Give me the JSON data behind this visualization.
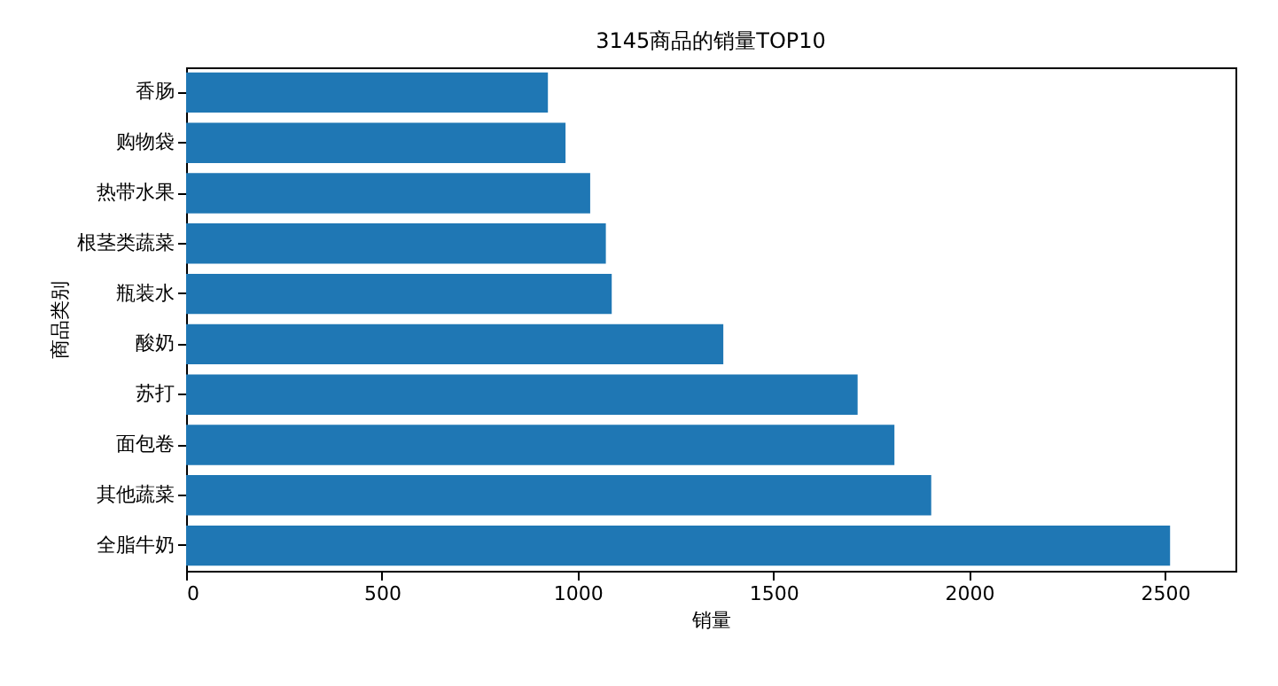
{
  "chart_data": {
    "type": "bar",
    "orientation": "horizontal",
    "title": "3145商品的销量TOP10",
    "xlabel": "销量",
    "ylabel": "商品类别",
    "categories": [
      "香肠",
      "购物袋",
      "热带水果",
      "根茎类蔬菜",
      "瓶装水",
      "酸奶",
      "苏打",
      "面包卷",
      "其他蔬菜",
      "全脂牛奶"
    ],
    "values": [
      924,
      969,
      1032,
      1072,
      1087,
      1372,
      1715,
      1809,
      1903,
      2513
    ],
    "color": "#1f77b4",
    "xlim": [
      0,
      2680
    ],
    "xticks": [
      0,
      500,
      1000,
      1500,
      2000,
      2500
    ],
    "grid": false
  }
}
